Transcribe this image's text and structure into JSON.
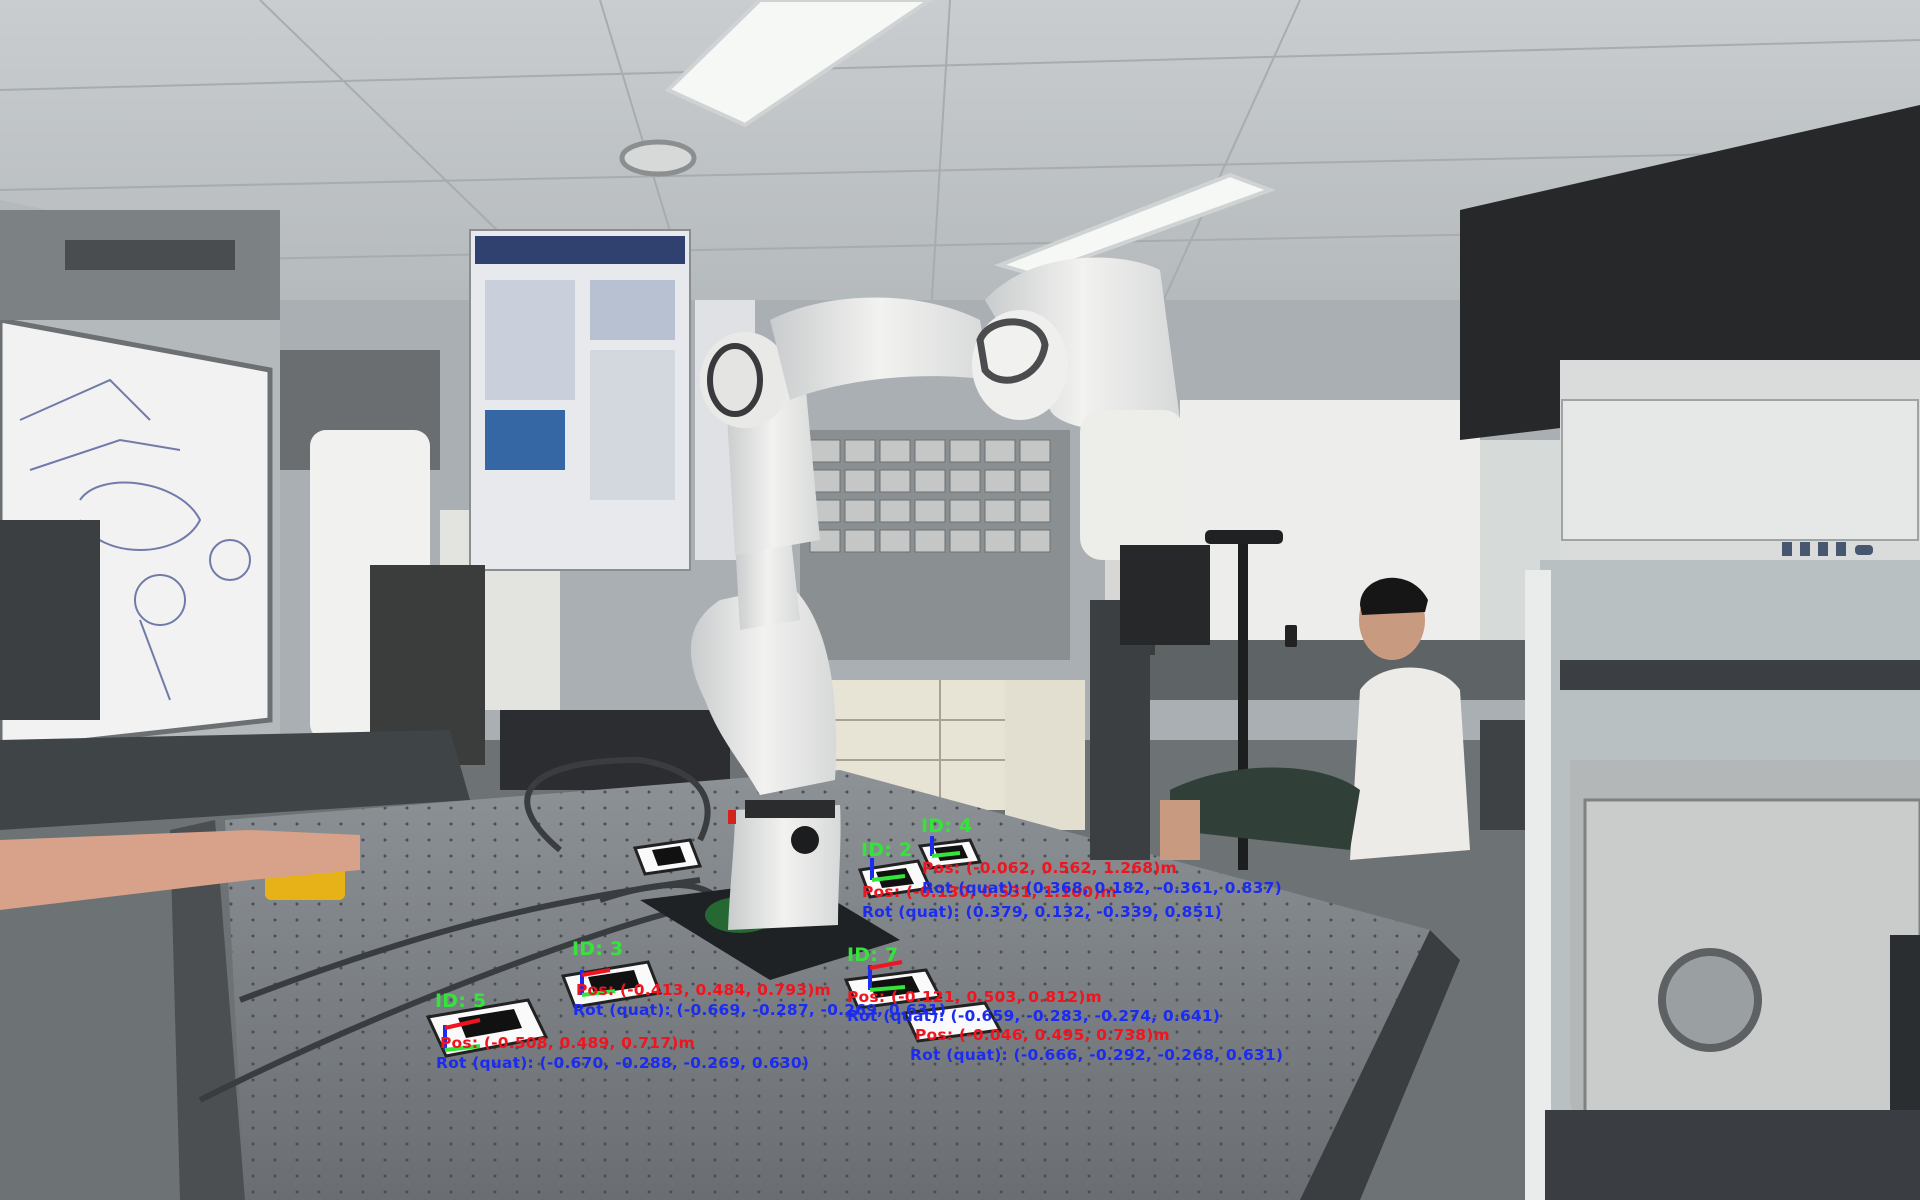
{
  "markers": [
    {
      "id_label": "ID: 5",
      "pos_label": "Pos: (-0.508, 0.489, 0.717)m",
      "rot_label": "Rot (quat): (-0.670, -0.288, -0.269, 0.630)"
    },
    {
      "id_label": "ID: 3",
      "pos_label": "Pos: (-0.413, 0.484, 0.793)m",
      "rot_label": "Rot (quat): (-0.669, -0.287, -0.269, 0.631)"
    },
    {
      "id_label": "ID: 7",
      "pos_label": "Pos: (-0.121, 0.503, 0.812)m",
      "rot_label": "Rot (quat): (-0.659, -0.283, -0.274, 0.641)"
    },
    {
      "id_label": "ID: 2",
      "pos_label": "Pos: (-0.130, 0.531, 1.100)m",
      "rot_label": "Rot (quat): (0.379, 0.132, -0.339, 0.851)"
    },
    {
      "id_label": "ID: 4",
      "pos_label": "Pos: (-0.062, 0.562, 1.268)m",
      "rot_label": "Rot (quat): (0.368, 0.182, -0.361, 0.837)"
    },
    {
      "id_label": "",
      "pos_label": "Pos: (-0.046, 0.495, 0.738)m",
      "rot_label": "Rot (quat): (-0.666, -0.292, -0.268, 0.631)"
    }
  ],
  "colors": {
    "id_text": "#35e43a",
    "pos_text": "#f0141e",
    "rot_text": "#1b2bf0"
  }
}
